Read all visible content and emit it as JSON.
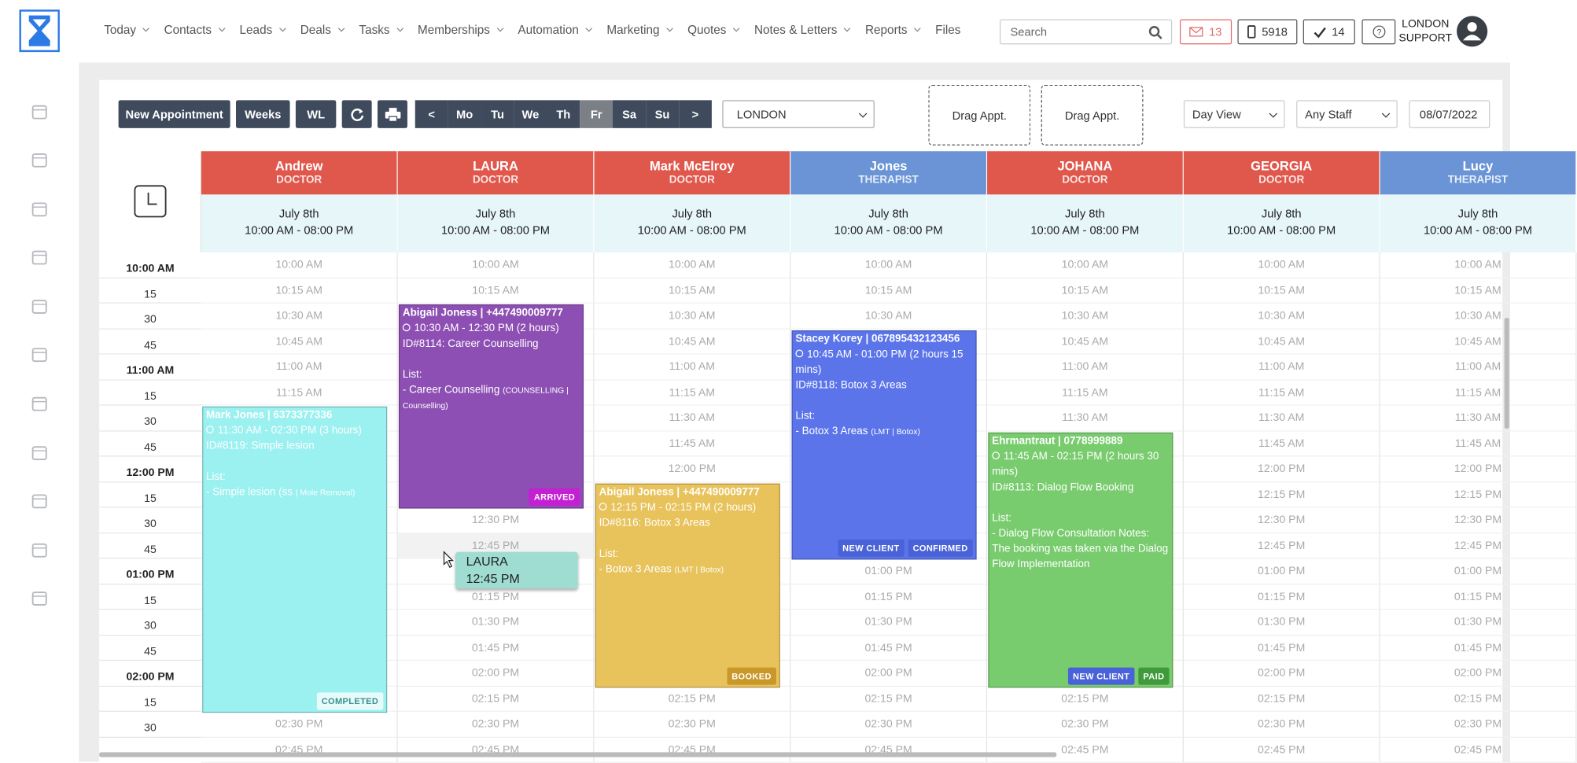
{
  "header": {
    "nav": [
      "Today",
      "Contacts",
      "Leads",
      "Deals",
      "Tasks",
      "Memberships",
      "Automation",
      "Marketing",
      "Quotes",
      "Notes & Letters",
      "Reports",
      "Files"
    ],
    "search_placeholder": "Search",
    "messages": "13",
    "phone": "5918",
    "tasks": "14",
    "user": [
      "LONDON",
      "SUPPORT"
    ]
  },
  "toolbar": {
    "buttons": [
      "New Appointment",
      "Weeks",
      "WL"
    ],
    "days": [
      "<",
      "Mo",
      "Tu",
      "We",
      "Th",
      "Fr",
      "Sa",
      "Su",
      ">"
    ],
    "selected_day": "Fr",
    "location": "LONDON",
    "drag_slots": [
      "Drag Appt.",
      "Drag Appt."
    ],
    "view": "Day View",
    "staff_filter": "Any Staff",
    "date": "08/07/2022"
  },
  "calendar": {
    "time_labels": [
      "10:00 AM",
      "15",
      "30",
      "45",
      "11:00 AM",
      "15",
      "30",
      "45",
      "12:00 PM",
      "15",
      "30",
      "45",
      "01:00 PM",
      "15",
      "30",
      "45",
      "02:00 PM",
      "15",
      "30"
    ],
    "slots": [
      "10:00 AM",
      "10:15 AM",
      "10:30 AM",
      "10:45 AM",
      "11:00 AM",
      "11:15 AM",
      "11:30 AM",
      "11:45 AM",
      "12:00 PM",
      "12:15 PM",
      "12:30 PM",
      "12:45 PM",
      "01:00 PM",
      "01:15 PM",
      "01:30 PM",
      "01:45 PM",
      "02:00 PM",
      "02:15 PM",
      "02:30 PM",
      "02:45 PM"
    ],
    "staff": [
      {
        "name": "Andrew",
        "role": "DOCTOR",
        "color": "#e0574c",
        "date": "July 8th",
        "hours": "10:00 AM - 08:00 PM",
        "appointments": [
          {
            "title": "Mark Jones | 6373377336",
            "time": "11:30 AM - 02:30 PM (3 hours)",
            "id": "ID#8119: Simple lesion",
            "list_label": "List:",
            "items": [
              {
                "text": "- Simple lesion (ss",
                "note": "| Mole Removal)"
              }
            ],
            "color": "#9bf0f0",
            "tags": [
              "COMPLETED"
            ]
          }
        ]
      },
      {
        "name": "LAURA",
        "role": "DOCTOR",
        "color": "#e0574c",
        "date": "July 8th",
        "hours": "10:00 AM - 08:00 PM",
        "appointments": [
          {
            "title": "Abigail Joness | +447490009777",
            "time": "10:30 AM - 12:30 PM (2 hours)",
            "id": "ID#8114: Career Counselling",
            "list_label": "List:",
            "items": [
              {
                "text": "- Career Counselling",
                "note": "(COUNSELLING | Counselling)"
              }
            ],
            "color": "#8d4fb3",
            "tags": [
              "ARRIVED"
            ]
          }
        ]
      },
      {
        "name": "Mark McElroy",
        "role": "DOCTOR",
        "color": "#e0574c",
        "date": "July 8th",
        "hours": "10:00 AM - 08:00 PM",
        "appointments": [
          {
            "title": "Abigail Joness | +447490009777",
            "time": "12:15 PM - 02:15 PM (2 hours)",
            "id": "ID#8116: Botox 3 Areas",
            "list_label": "List:",
            "items": [
              {
                "text": "- Botox 3 Areas",
                "note": "(LMT | Botox)"
              }
            ],
            "color": "#e8c25a",
            "tags": [
              "BOOKED"
            ]
          }
        ]
      },
      {
        "name": "Jones",
        "role": "THERAPIST",
        "color": "#6a94d6",
        "date": "July 8th",
        "hours": "10:00 AM - 08:00 PM",
        "appointments": [
          {
            "title": "Stacey Korey | 067895432123456",
            "time": "10:45 AM - 01:00 PM (2 hours 15 mins)",
            "id": "ID#8118: Botox 3 Areas",
            "list_label": "List:",
            "items": [
              {
                "text": "- Botox 3 Areas",
                "note": "(LMT | Botox)"
              }
            ],
            "color": "#5b74ea",
            "tags": [
              "NEW CLIENT",
              "CONFIRMED"
            ]
          }
        ]
      },
      {
        "name": "JOHANA",
        "role": "DOCTOR",
        "color": "#e0574c",
        "date": "July 8th",
        "hours": "10:00 AM - 08:00 PM",
        "appointments": [
          {
            "title": "Ehrmantraut | 0778999889",
            "time": "11:45 AM - 02:15 PM (2 hours 30 mins)",
            "id": "ID#8113: Dialog Flow Booking",
            "list_label": "List:",
            "items": [
              {
                "text": "- Dialog Flow Consultation Notes: The booking was taken via the Dialog Flow Implementation",
                "note": ""
              }
            ],
            "color": "#78cc6e",
            "tags": [
              "NEW CLIENT",
              "PAID"
            ]
          }
        ]
      },
      {
        "name": "GEORGIA",
        "role": "DOCTOR",
        "color": "#e0574c",
        "date": "July 8th",
        "hours": "10:00 AM - 08:00 PM",
        "appointments": []
      },
      {
        "name": "Lucy",
        "role": "THERAPIST",
        "color": "#6a94d6",
        "date": "July 8th",
        "hours": "10:00 AM - 08:00 PM",
        "appointments": []
      }
    ],
    "drag_preview": {
      "staff": "LAURA",
      "time": "12:45 PM"
    }
  }
}
